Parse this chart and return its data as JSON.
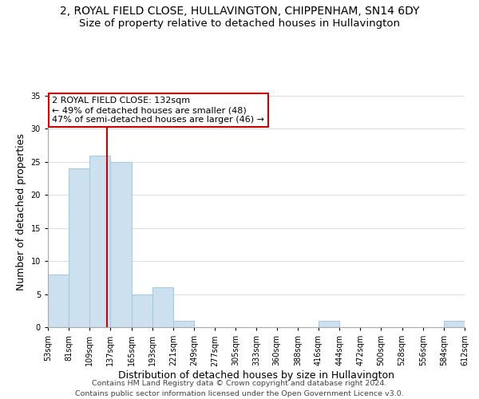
{
  "title_line1": "2, ROYAL FIELD CLOSE, HULLAVINGTON, CHIPPENHAM, SN14 6DY",
  "title_line2": "Size of property relative to detached houses in Hullavington",
  "xlabel": "Distribution of detached houses by size in Hullavington",
  "ylabel": "Number of detached properties",
  "bin_edges": [
    53,
    81,
    109,
    137,
    165,
    193,
    221,
    249,
    277,
    305,
    333,
    360,
    388,
    416,
    444,
    472,
    500,
    528,
    556,
    584,
    612
  ],
  "bar_heights": [
    8,
    24,
    26,
    25,
    5,
    6,
    1,
    0,
    0,
    0,
    0,
    0,
    0,
    1,
    0,
    0,
    0,
    0,
    0,
    1
  ],
  "bar_color": "#cce0f0",
  "bar_edgecolor": "#a8ccdf",
  "vline_x": 132,
  "vline_color": "#cc0000",
  "ylim": [
    0,
    35
  ],
  "yticks": [
    0,
    5,
    10,
    15,
    20,
    25,
    30,
    35
  ],
  "annotation_line1": "2 ROYAL FIELD CLOSE: 132sqm",
  "annotation_line2": "← 49% of detached houses are smaller (48)",
  "annotation_line3": "47% of semi-detached houses are larger (46) →",
  "annotation_box_edgecolor": "#cc0000",
  "footer_line1": "Contains HM Land Registry data © Crown copyright and database right 2024.",
  "footer_line2": "Contains public sector information licensed under the Open Government Licence v3.0.",
  "title_fontsize": 10,
  "subtitle_fontsize": 9.5,
  "tick_label_fontsize": 7,
  "axis_label_fontsize": 9,
  "annotation_fontsize": 8,
  "footer_fontsize": 6.8
}
